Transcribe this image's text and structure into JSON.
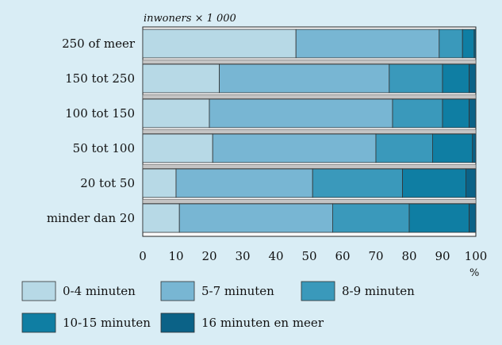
{
  "chart_data": {
    "type": "bar",
    "orientation": "horizontal",
    "stacked": true,
    "unit_label": "inwoners × 1 000",
    "x_axis_label": "%",
    "xlim": [
      0,
      100
    ],
    "x_ticks": [
      0,
      10,
      20,
      30,
      40,
      50,
      60,
      70,
      80,
      90,
      100
    ],
    "grid": false,
    "legend_position": "bottom",
    "categories": [
      "250 of meer",
      "150 tot 250",
      "100 tot 150",
      "50 tot 100",
      "20 tot 50",
      "minder dan 20"
    ],
    "series": [
      {
        "name": "0-4 minuten",
        "color": "#b7d9e6",
        "values": [
          46,
          23,
          20,
          21,
          10,
          11
        ]
      },
      {
        "name": "5-7 minuten",
        "color": "#78b6d3",
        "values": [
          43,
          51,
          55,
          49,
          41,
          46
        ]
      },
      {
        "name": "8-9 minuten",
        "color": "#3a99bb",
        "values": [
          7,
          16,
          15,
          17,
          27,
          23
        ]
      },
      {
        "name": "10-15 minuten",
        "color": "#0f7ea3",
        "values": [
          3.5,
          8,
          8,
          12,
          19,
          18
        ]
      },
      {
        "name": "16 minuten en meer",
        "color": "#0b6287",
        "values": [
          0.5,
          2,
          2,
          1,
          3,
          2
        ]
      }
    ]
  }
}
